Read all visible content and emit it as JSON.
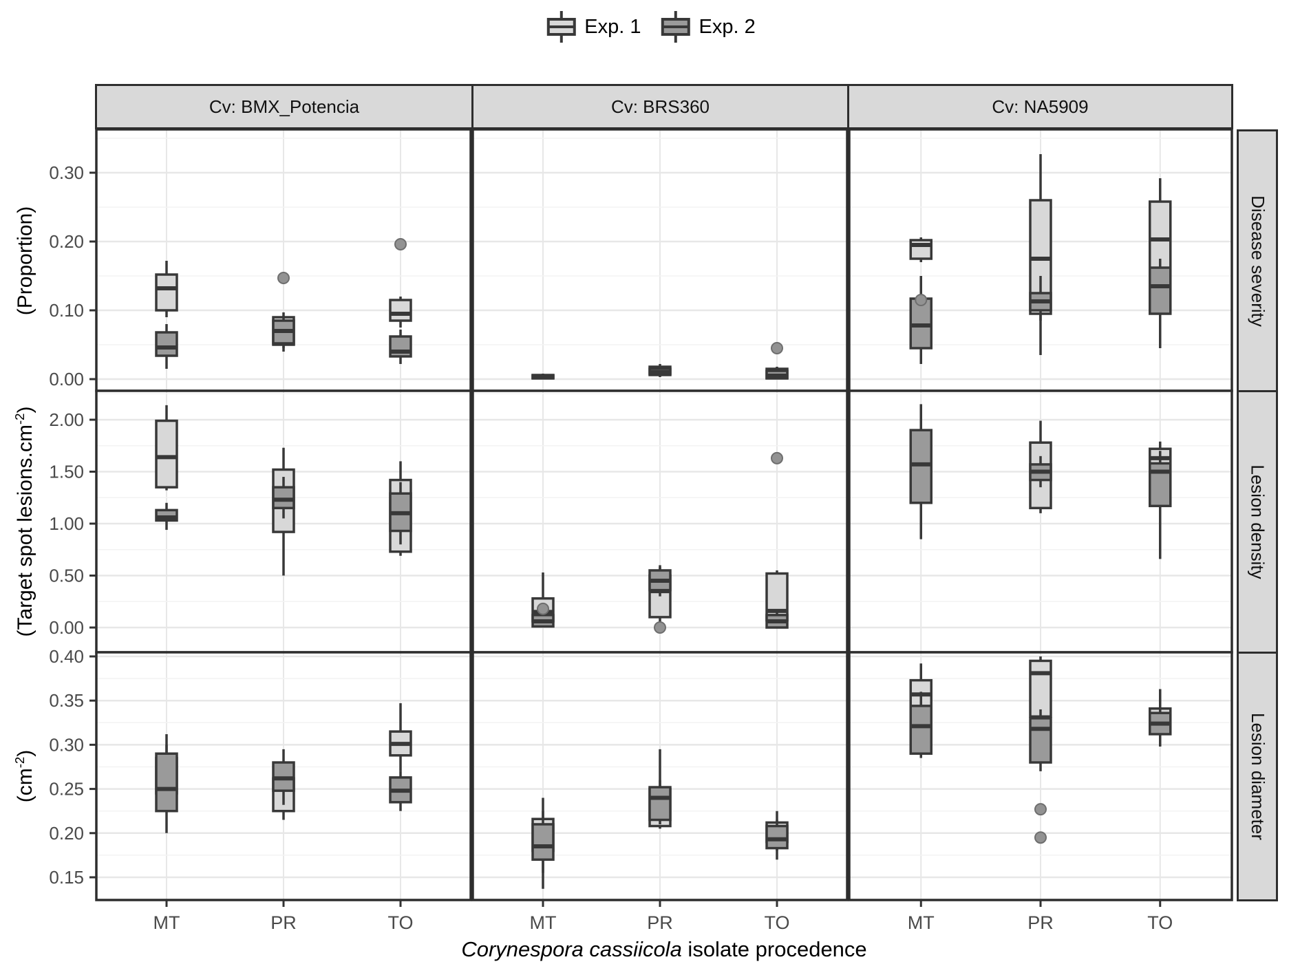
{
  "colors": {
    "exp1_fill": "#d8d8d8",
    "exp2_fill": "#9a9a9a",
    "box_stroke": "#383838",
    "outlier_fill": "#929292",
    "outlier_stroke": "#6e6e6e",
    "strip_bg": "#d9d9d9",
    "panel_border": "#2e2e2e",
    "grid_major": "#e7e7e7",
    "grid_minor": "#f3f3f3",
    "tick_text": "#4a4a4a"
  },
  "legend": {
    "items": [
      {
        "label": "Exp. 1"
      },
      {
        "label": "Exp. 2"
      }
    ]
  },
  "facets": {
    "columns": [
      "Cv: BMX_Potencia",
      "Cv: BRS360",
      "Cv: NA5909"
    ],
    "rows": [
      "Disease severity",
      "Lesion density",
      "Lesion diameter"
    ]
  },
  "yaxis": {
    "row_labels": [
      {
        "pre": "(Proportion)",
        "sup": "",
        "post": ""
      },
      {
        "pre": "(Target spot lesions.cm",
        "sup": "-2",
        "post": ")"
      },
      {
        "pre": "(cm",
        "sup": "-2",
        "post": ")"
      }
    ]
  },
  "xaxis": {
    "title_italic": "Corynespora cassiicola",
    "title_rest": " isolate procedence",
    "categories": [
      "MT",
      "PR",
      "TO"
    ]
  },
  "chart_data": {
    "type": "boxplot",
    "series": [
      "Exp. 1",
      "Exp. 2"
    ],
    "x_categories": [
      "MT",
      "PR",
      "TO"
    ],
    "rows": [
      {
        "strip": "Disease severity",
        "ylabel": "(Proportion)",
        "yticks": [
          {
            "v": 0.0,
            "label": "0.00"
          },
          {
            "v": 0.1,
            "label": "0.10"
          },
          {
            "v": 0.2,
            "label": "0.20"
          },
          {
            "v": 0.3,
            "label": "0.30"
          }
        ],
        "columns": [
          {
            "strip": "Cv: BMX_Potencia",
            "groups": [
              {
                "x": "MT",
                "exp1": {
                  "lo": 0.09,
                  "q1": 0.1,
                  "med": 0.132,
                  "q3": 0.152,
                  "hi": 0.172,
                  "outliers": []
                },
                "exp2": {
                  "lo": 0.015,
                  "q1": 0.034,
                  "med": 0.046,
                  "q3": 0.068,
                  "hi": 0.08,
                  "outliers": []
                }
              },
              {
                "x": "PR",
                "exp1": {
                  "lo": 0.04,
                  "q1": 0.05,
                  "med": 0.06,
                  "q3": 0.09,
                  "hi": 0.097,
                  "outliers": [
                    0.147
                  ]
                },
                "exp2": {
                  "lo": 0.045,
                  "q1": 0.052,
                  "med": 0.07,
                  "q3": 0.085,
                  "hi": 0.092,
                  "outliers": []
                }
              },
              {
                "x": "TO",
                "exp1": {
                  "lo": 0.075,
                  "q1": 0.085,
                  "med": 0.095,
                  "q3": 0.115,
                  "hi": 0.12,
                  "outliers": [
                    0.196
                  ]
                },
                "exp2": {
                  "lo": 0.022,
                  "q1": 0.033,
                  "med": 0.04,
                  "q3": 0.062,
                  "hi": 0.072,
                  "outliers": []
                }
              }
            ]
          },
          {
            "strip": "Cv: BRS360",
            "groups": [
              {
                "x": "MT",
                "exp1": {
                  "lo": 0.001,
                  "q1": 0.002,
                  "med": 0.004,
                  "q3": 0.006,
                  "hi": 0.008,
                  "outliers": []
                },
                "exp2": {
                  "lo": 0.0,
                  "q1": 0.001,
                  "med": 0.003,
                  "q3": 0.005,
                  "hi": 0.007,
                  "outliers": []
                }
              },
              {
                "x": "PR",
                "exp1": {
                  "lo": 0.004,
                  "q1": 0.008,
                  "med": 0.013,
                  "q3": 0.018,
                  "hi": 0.022,
                  "outliers": []
                },
                "exp2": {
                  "lo": 0.003,
                  "q1": 0.006,
                  "med": 0.01,
                  "q3": 0.015,
                  "hi": 0.019,
                  "outliers": []
                }
              },
              {
                "x": "TO",
                "exp1": {
                  "lo": 0.0,
                  "q1": 0.002,
                  "med": 0.008,
                  "q3": 0.015,
                  "hi": 0.018,
                  "outliers": []
                },
                "exp2": {
                  "lo": 0.0,
                  "q1": 0.001,
                  "med": 0.005,
                  "q3": 0.012,
                  "hi": 0.015,
                  "outliers": [
                    0.045
                  ]
                }
              }
            ]
          },
          {
            "strip": "Cv: NA5909",
            "groups": [
              {
                "x": "MT",
                "exp1": {
                  "lo": 0.17,
                  "q1": 0.175,
                  "med": 0.195,
                  "q3": 0.202,
                  "hi": 0.206,
                  "outliers": [
                    0.115
                  ]
                },
                "exp2": {
                  "lo": 0.022,
                  "q1": 0.045,
                  "med": 0.078,
                  "q3": 0.117,
                  "hi": 0.15,
                  "outliers": []
                }
              },
              {
                "x": "PR",
                "exp1": {
                  "lo": 0.035,
                  "q1": 0.095,
                  "med": 0.175,
                  "q3": 0.26,
                  "hi": 0.327,
                  "outliers": []
                },
                "exp2": {
                  "lo": 0.085,
                  "q1": 0.1,
                  "med": 0.113,
                  "q3": 0.125,
                  "hi": 0.15,
                  "outliers": []
                }
              },
              {
                "x": "TO",
                "exp1": {
                  "lo": 0.045,
                  "q1": 0.135,
                  "med": 0.203,
                  "q3": 0.258,
                  "hi": 0.292,
                  "outliers": []
                },
                "exp2": {
                  "lo": 0.065,
                  "q1": 0.095,
                  "med": 0.135,
                  "q3": 0.162,
                  "hi": 0.175,
                  "outliers": []
                }
              }
            ]
          }
        ]
      },
      {
        "strip": "Lesion density",
        "ylabel": "(Target spot lesions.cm-2)",
        "yticks": [
          {
            "v": 0.0,
            "label": "0.00"
          },
          {
            "v": 0.5,
            "label": "0.50"
          },
          {
            "v": 1.0,
            "label": "1.00"
          },
          {
            "v": 1.5,
            "label": "1.50"
          },
          {
            "v": 2.0,
            "label": "2.00"
          }
        ],
        "columns": [
          {
            "strip": "Cv: BMX_Potencia",
            "groups": [
              {
                "x": "MT",
                "exp1": {
                  "lo": 1.32,
                  "q1": 1.35,
                  "med": 1.64,
                  "q3": 1.99,
                  "hi": 2.14,
                  "outliers": []
                },
                "exp2": {
                  "lo": 0.94,
                  "q1": 1.03,
                  "med": 1.06,
                  "q3": 1.13,
                  "hi": 1.2,
                  "outliers": []
                }
              },
              {
                "x": "PR",
                "exp1": {
                  "lo": 0.5,
                  "q1": 0.92,
                  "med": 1.21,
                  "q3": 1.52,
                  "hi": 1.73,
                  "outliers": []
                },
                "exp2": {
                  "lo": 1.05,
                  "q1": 1.15,
                  "med": 1.23,
                  "q3": 1.35,
                  "hi": 1.45,
                  "outliers": []
                }
              },
              {
                "x": "TO",
                "exp1": {
                  "lo": 0.69,
                  "q1": 0.73,
                  "med": 1.05,
                  "q3": 1.42,
                  "hi": 1.6,
                  "outliers": []
                },
                "exp2": {
                  "lo": 0.8,
                  "q1": 0.93,
                  "med": 1.1,
                  "q3": 1.29,
                  "hi": 1.4,
                  "outliers": []
                }
              }
            ]
          },
          {
            "strip": "Cv: BRS360",
            "groups": [
              {
                "x": "MT",
                "exp1": {
                  "lo": 0.02,
                  "q1": 0.06,
                  "med": 0.15,
                  "q3": 0.28,
                  "hi": 0.53,
                  "outliers": []
                },
                "exp2": {
                  "lo": 0.0,
                  "q1": 0.01,
                  "med": 0.06,
                  "q3": 0.12,
                  "hi": 0.16,
                  "outliers": [
                    0.18
                  ]
                }
              },
              {
                "x": "PR",
                "exp1": {
                  "lo": 0.03,
                  "q1": 0.1,
                  "med": 0.35,
                  "q3": 0.5,
                  "hi": 0.58,
                  "outliers": [
                    0.0
                  ]
                },
                "exp2": {
                  "lo": 0.3,
                  "q1": 0.36,
                  "med": 0.45,
                  "q3": 0.55,
                  "hi": 0.6,
                  "outliers": []
                }
              },
              {
                "x": "TO",
                "exp1": {
                  "lo": 0.0,
                  "q1": 0.07,
                  "med": 0.16,
                  "q3": 0.52,
                  "hi": 0.55,
                  "outliers": [
                    1.63
                  ]
                },
                "exp2": {
                  "lo": 0.0,
                  "q1": 0.0,
                  "med": 0.06,
                  "q3": 0.12,
                  "hi": 0.15,
                  "outliers": []
                }
              }
            ]
          },
          {
            "strip": "Cv: NA5909",
            "groups": [
              {
                "x": "MT",
                "exp1": {
                  "lo": 1.08,
                  "q1": 1.27,
                  "med": 1.44,
                  "q3": 1.56,
                  "hi": 1.73,
                  "outliers": []
                },
                "exp2": {
                  "lo": 0.85,
                  "q1": 1.2,
                  "med": 1.57,
                  "q3": 1.9,
                  "hi": 2.15,
                  "outliers": []
                }
              },
              {
                "x": "PR",
                "exp1": {
                  "lo": 1.1,
                  "q1": 1.15,
                  "med": 1.47,
                  "q3": 1.78,
                  "hi": 1.99,
                  "outliers": []
                },
                "exp2": {
                  "lo": 1.35,
                  "q1": 1.42,
                  "med": 1.5,
                  "q3": 1.57,
                  "hi": 1.65,
                  "outliers": []
                }
              },
              {
                "x": "TO",
                "exp1": {
                  "lo": 1.35,
                  "q1": 1.45,
                  "med": 1.63,
                  "q3": 1.72,
                  "hi": 1.79,
                  "outliers": []
                },
                "exp2": {
                  "lo": 0.66,
                  "q1": 1.17,
                  "med": 1.5,
                  "q3": 1.58,
                  "hi": 1.7,
                  "outliers": []
                }
              }
            ]
          }
        ]
      },
      {
        "strip": "Lesion diameter",
        "ylabel": "(cm-2)",
        "yticks": [
          {
            "v": 0.15,
            "label": "0.15"
          },
          {
            "v": 0.2,
            "label": "0.20"
          },
          {
            "v": 0.25,
            "label": "0.25"
          },
          {
            "v": 0.3,
            "label": "0.30"
          },
          {
            "v": 0.35,
            "label": "0.35"
          },
          {
            "v": 0.4,
            "label": "0.40"
          }
        ],
        "columns": [
          {
            "strip": "Cv: BMX_Potencia",
            "groups": [
              {
                "x": "MT",
                "exp1": {
                  "lo": 0.235,
                  "q1": 0.245,
                  "med": 0.262,
                  "q3": 0.285,
                  "hi": 0.3,
                  "outliers": []
                },
                "exp2": {
                  "lo": 0.2,
                  "q1": 0.225,
                  "med": 0.25,
                  "q3": 0.29,
                  "hi": 0.312,
                  "outliers": []
                }
              },
              {
                "x": "PR",
                "exp1": {
                  "lo": 0.215,
                  "q1": 0.225,
                  "med": 0.252,
                  "q3": 0.262,
                  "hi": 0.27,
                  "outliers": []
                },
                "exp2": {
                  "lo": 0.232,
                  "q1": 0.248,
                  "med": 0.262,
                  "q3": 0.28,
                  "hi": 0.295,
                  "outliers": []
                }
              },
              {
                "x": "TO",
                "exp1": {
                  "lo": 0.27,
                  "q1": 0.288,
                  "med": 0.301,
                  "q3": 0.315,
                  "hi": 0.347,
                  "outliers": []
                },
                "exp2": {
                  "lo": 0.225,
                  "q1": 0.235,
                  "med": 0.248,
                  "q3": 0.263,
                  "hi": 0.27,
                  "outliers": []
                }
              }
            ]
          },
          {
            "strip": "Cv: BRS360",
            "groups": [
              {
                "x": "MT",
                "exp1": {
                  "lo": 0.155,
                  "q1": 0.18,
                  "med": 0.196,
                  "q3": 0.216,
                  "hi": 0.24,
                  "outliers": []
                },
                "exp2": {
                  "lo": 0.137,
                  "q1": 0.17,
                  "med": 0.185,
                  "q3": 0.21,
                  "hi": 0.225,
                  "outliers": []
                }
              },
              {
                "x": "PR",
                "exp1": {
                  "lo": 0.205,
                  "q1": 0.208,
                  "med": 0.228,
                  "q3": 0.25,
                  "hi": 0.295,
                  "outliers": []
                },
                "exp2": {
                  "lo": 0.21,
                  "q1": 0.215,
                  "med": 0.24,
                  "q3": 0.252,
                  "hi": 0.26,
                  "outliers": []
                }
              },
              {
                "x": "TO",
                "exp1": {
                  "lo": 0.18,
                  "q1": 0.19,
                  "med": 0.203,
                  "q3": 0.212,
                  "hi": 0.225,
                  "outliers": []
                },
                "exp2": {
                  "lo": 0.17,
                  "q1": 0.183,
                  "med": 0.193,
                  "q3": 0.208,
                  "hi": 0.215,
                  "outliers": []
                }
              }
            ]
          },
          {
            "strip": "Cv: NA5909",
            "groups": [
              {
                "x": "MT",
                "exp1": {
                  "lo": 0.29,
                  "q1": 0.305,
                  "med": 0.357,
                  "q3": 0.373,
                  "hi": 0.392,
                  "outliers": []
                },
                "exp2": {
                  "lo": 0.285,
                  "q1": 0.29,
                  "med": 0.321,
                  "q3": 0.344,
                  "hi": 0.36,
                  "outliers": []
                }
              },
              {
                "x": "PR",
                "exp1": {
                  "lo": 0.33,
                  "q1": 0.332,
                  "med": 0.381,
                  "q3": 0.395,
                  "hi": 0.4,
                  "outliers": []
                },
                "exp2": {
                  "lo": 0.27,
                  "q1": 0.28,
                  "med": 0.318,
                  "q3": 0.33,
                  "hi": 0.34,
                  "outliers": [
                    0.227,
                    0.195
                  ]
                }
              },
              {
                "x": "TO",
                "exp1": {
                  "lo": 0.3,
                  "q1": 0.318,
                  "med": 0.33,
                  "q3": 0.341,
                  "hi": 0.363,
                  "outliers": []
                },
                "exp2": {
                  "lo": 0.298,
                  "q1": 0.312,
                  "med": 0.324,
                  "q3": 0.336,
                  "hi": 0.35,
                  "outliers": []
                }
              }
            ]
          }
        ]
      }
    ]
  }
}
